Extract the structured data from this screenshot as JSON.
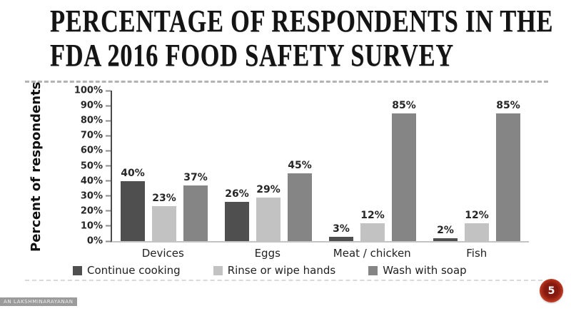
{
  "slide": {
    "title_line1": "PERCENTAGE OF RESPONDENTS IN THE",
    "title_line2": "FDA 2016 FOOD SAFETY SURVEY"
  },
  "chart_data": {
    "type": "bar",
    "title": "Percentage of respondents in the FDA 2016 Food Safety Survey",
    "xlabel": "",
    "ylabel": "Percent of respondents",
    "ylim": [
      0,
      100
    ],
    "grid": false,
    "legend_position": "bottom",
    "data_label_suffix": "%",
    "y_ticks": [
      "100%",
      "90%",
      "80%",
      "70%",
      "60%",
      "50%",
      "40%",
      "30%",
      "20%",
      "10%",
      "0%"
    ],
    "categories": [
      "Devices",
      "Eggs",
      "Meat / chicken",
      "Fish"
    ],
    "series": [
      {
        "name": "Continue cooking",
        "color": "#4f4f4f",
        "values": [
          40,
          26,
          3,
          2
        ]
      },
      {
        "name": "Rinse or wipe hands",
        "color": "#c2c2c2",
        "values": [
          23,
          29,
          12,
          12
        ]
      },
      {
        "name": "Wash with soap",
        "color": "#858585",
        "values": [
          37,
          45,
          85,
          85
        ]
      }
    ]
  },
  "footer": {
    "watermark": "AN LAKSHMINARAYANAN",
    "page_badge": "5"
  }
}
